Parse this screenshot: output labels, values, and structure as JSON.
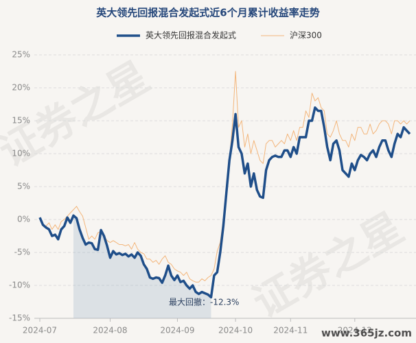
{
  "chart_data": {
    "type": "line",
    "title": "英大领先回报混合发起式近6个月累计收益率走势",
    "watermark": "证券之星",
    "site_mark": "www.365jz.com",
    "annotation": "最大回撤：-12.3%",
    "categories": [
      "2024-07",
      null,
      null,
      null,
      null,
      null,
      null,
      null,
      null,
      null,
      null,
      null,
      null,
      null,
      null,
      null,
      null,
      null,
      null,
      null,
      null,
      null,
      null,
      "2024-08",
      null,
      null,
      null,
      null,
      null,
      null,
      null,
      null,
      null,
      null,
      null,
      null,
      null,
      null,
      null,
      null,
      null,
      null,
      null,
      null,
      null,
      "2024-09",
      null,
      null,
      null,
      null,
      null,
      null,
      null,
      null,
      null,
      null,
      null,
      null,
      null,
      null,
      null,
      null,
      null,
      null,
      "2024-10",
      null,
      null,
      null,
      null,
      null,
      null,
      null,
      null,
      null,
      null,
      null,
      null,
      null,
      null,
      null,
      null,
      null,
      "2024-11",
      null,
      null,
      null,
      null,
      null,
      null,
      null,
      null,
      null,
      null,
      null,
      null,
      null,
      null,
      null,
      null,
      null,
      null,
      null,
      null,
      "2024-12",
      null,
      null,
      null,
      null,
      null,
      null,
      null,
      null,
      null,
      null,
      null,
      null,
      null,
      null,
      null,
      null,
      null,
      null
    ],
    "series": [
      {
        "name": "英大领先回报混合发起式",
        "color": "#1f4e89",
        "width": 3.5,
        "values": [
          0.3,
          -0.8,
          -1.2,
          -1.5,
          -2.5,
          -2.3,
          -3.0,
          -1.5,
          -1.0,
          0.3,
          -0.5,
          0.6,
          0.2,
          -1.5,
          -2.8,
          -3.8,
          -3.5,
          -3.6,
          -4.5,
          -4.6,
          -1.6,
          -2.5,
          -4.0,
          -5.8,
          -4.8,
          -5.3,
          -5.1,
          -5.4,
          -5.2,
          -5.6,
          -5.3,
          -5.8,
          -5.0,
          -5.5,
          -6.8,
          -7.5,
          -8.8,
          -9.0,
          -8.8,
          -8.9,
          -9.6,
          -8.5,
          -7.0,
          -8.5,
          -9.2,
          -8.5,
          -9.5,
          -9.3,
          -10.0,
          -10.5,
          -10.0,
          -11.0,
          -11.3,
          -11.0,
          -11.2,
          -11.4,
          -11.8,
          -8.5,
          -8.0,
          -5.0,
          -1.0,
          4.0,
          9.0,
          12.0,
          16.0,
          11.0,
          10.0,
          7.0,
          8.5,
          5.0,
          7.0,
          4.5,
          3.5,
          3.3,
          7.5,
          9.0,
          9.5,
          9.7,
          9.5,
          9.5,
          10.5,
          10.5,
          9.5,
          11.0,
          10.0,
          12.5,
          12.5,
          12.5,
          15.0,
          15.0,
          17.0,
          16.5,
          16.5,
          14.0,
          11.0,
          9.0,
          11.5,
          12.0,
          10.5,
          7.5,
          7.0,
          6.5,
          8.5,
          7.5,
          9.0,
          9.8,
          9.5,
          9.0,
          10.0,
          10.5,
          9.5,
          11.0,
          12.0,
          12.0,
          10.5,
          9.5,
          11.5,
          13.0,
          12.5,
          14.0,
          13.5,
          13.0
        ]
      },
      {
        "name": "沪深300",
        "color": "#f3b57a",
        "width": 1,
        "values": [
          0,
          -1,
          -1,
          -0.5,
          -1.5,
          -0.8,
          -1.5,
          -0.3,
          0,
          0.5,
          1,
          1.5,
          2,
          1.2,
          0.5,
          -1.2,
          -3,
          -2.5,
          -3,
          -2,
          -1.8,
          -2.5,
          -3.2,
          -3.5,
          -3.2,
          -3.5,
          -3.8,
          -3.8,
          -4,
          -3.8,
          -4.5,
          -3.5,
          -4.5,
          -5,
          -5.2,
          -6,
          -6,
          -6.5,
          -6.2,
          -6.8,
          -6,
          -5.5,
          -6.5,
          -6.8,
          -7.5,
          -7.8,
          -8,
          -8.5,
          -8,
          -9,
          -9.3,
          -9.5,
          -9.5,
          -9,
          -9.3,
          -8.8,
          -8.5,
          -7.5,
          -4.8,
          -3.5,
          0,
          5,
          9,
          14.5,
          22.5,
          14,
          15,
          11,
          13,
          10,
          12,
          10.5,
          9,
          8.5,
          11.5,
          12,
          12,
          11,
          11.5,
          12,
          11.5,
          13,
          12,
          13.5,
          12,
          14,
          14,
          16.5,
          15.5,
          19.2,
          18,
          18.5,
          17,
          16.5,
          13,
          12.5,
          13.5,
          15,
          13,
          12,
          12,
          11,
          13,
          12,
          14,
          14,
          13,
          13,
          14.5,
          13,
          13.5,
          14.5,
          15,
          15,
          14.5,
          13,
          15,
          15,
          14.5,
          15,
          14.5,
          15
        ]
      }
    ],
    "ylim": [
      -15,
      25
    ],
    "yticks": [
      {
        "value": -15,
        "label": "-15%"
      },
      {
        "value": -10,
        "label": "-10%"
      },
      {
        "value": -5,
        "label": "-5%"
      },
      {
        "value": 0,
        "label": "0%"
      },
      {
        "value": 5,
        "label": "5%"
      },
      {
        "value": 10,
        "label": "10%"
      },
      {
        "value": 15,
        "label": "15%"
      },
      {
        "value": 20,
        "label": "20%"
      },
      {
        "value": 25,
        "label": "25%"
      }
    ],
    "grid": true
  }
}
